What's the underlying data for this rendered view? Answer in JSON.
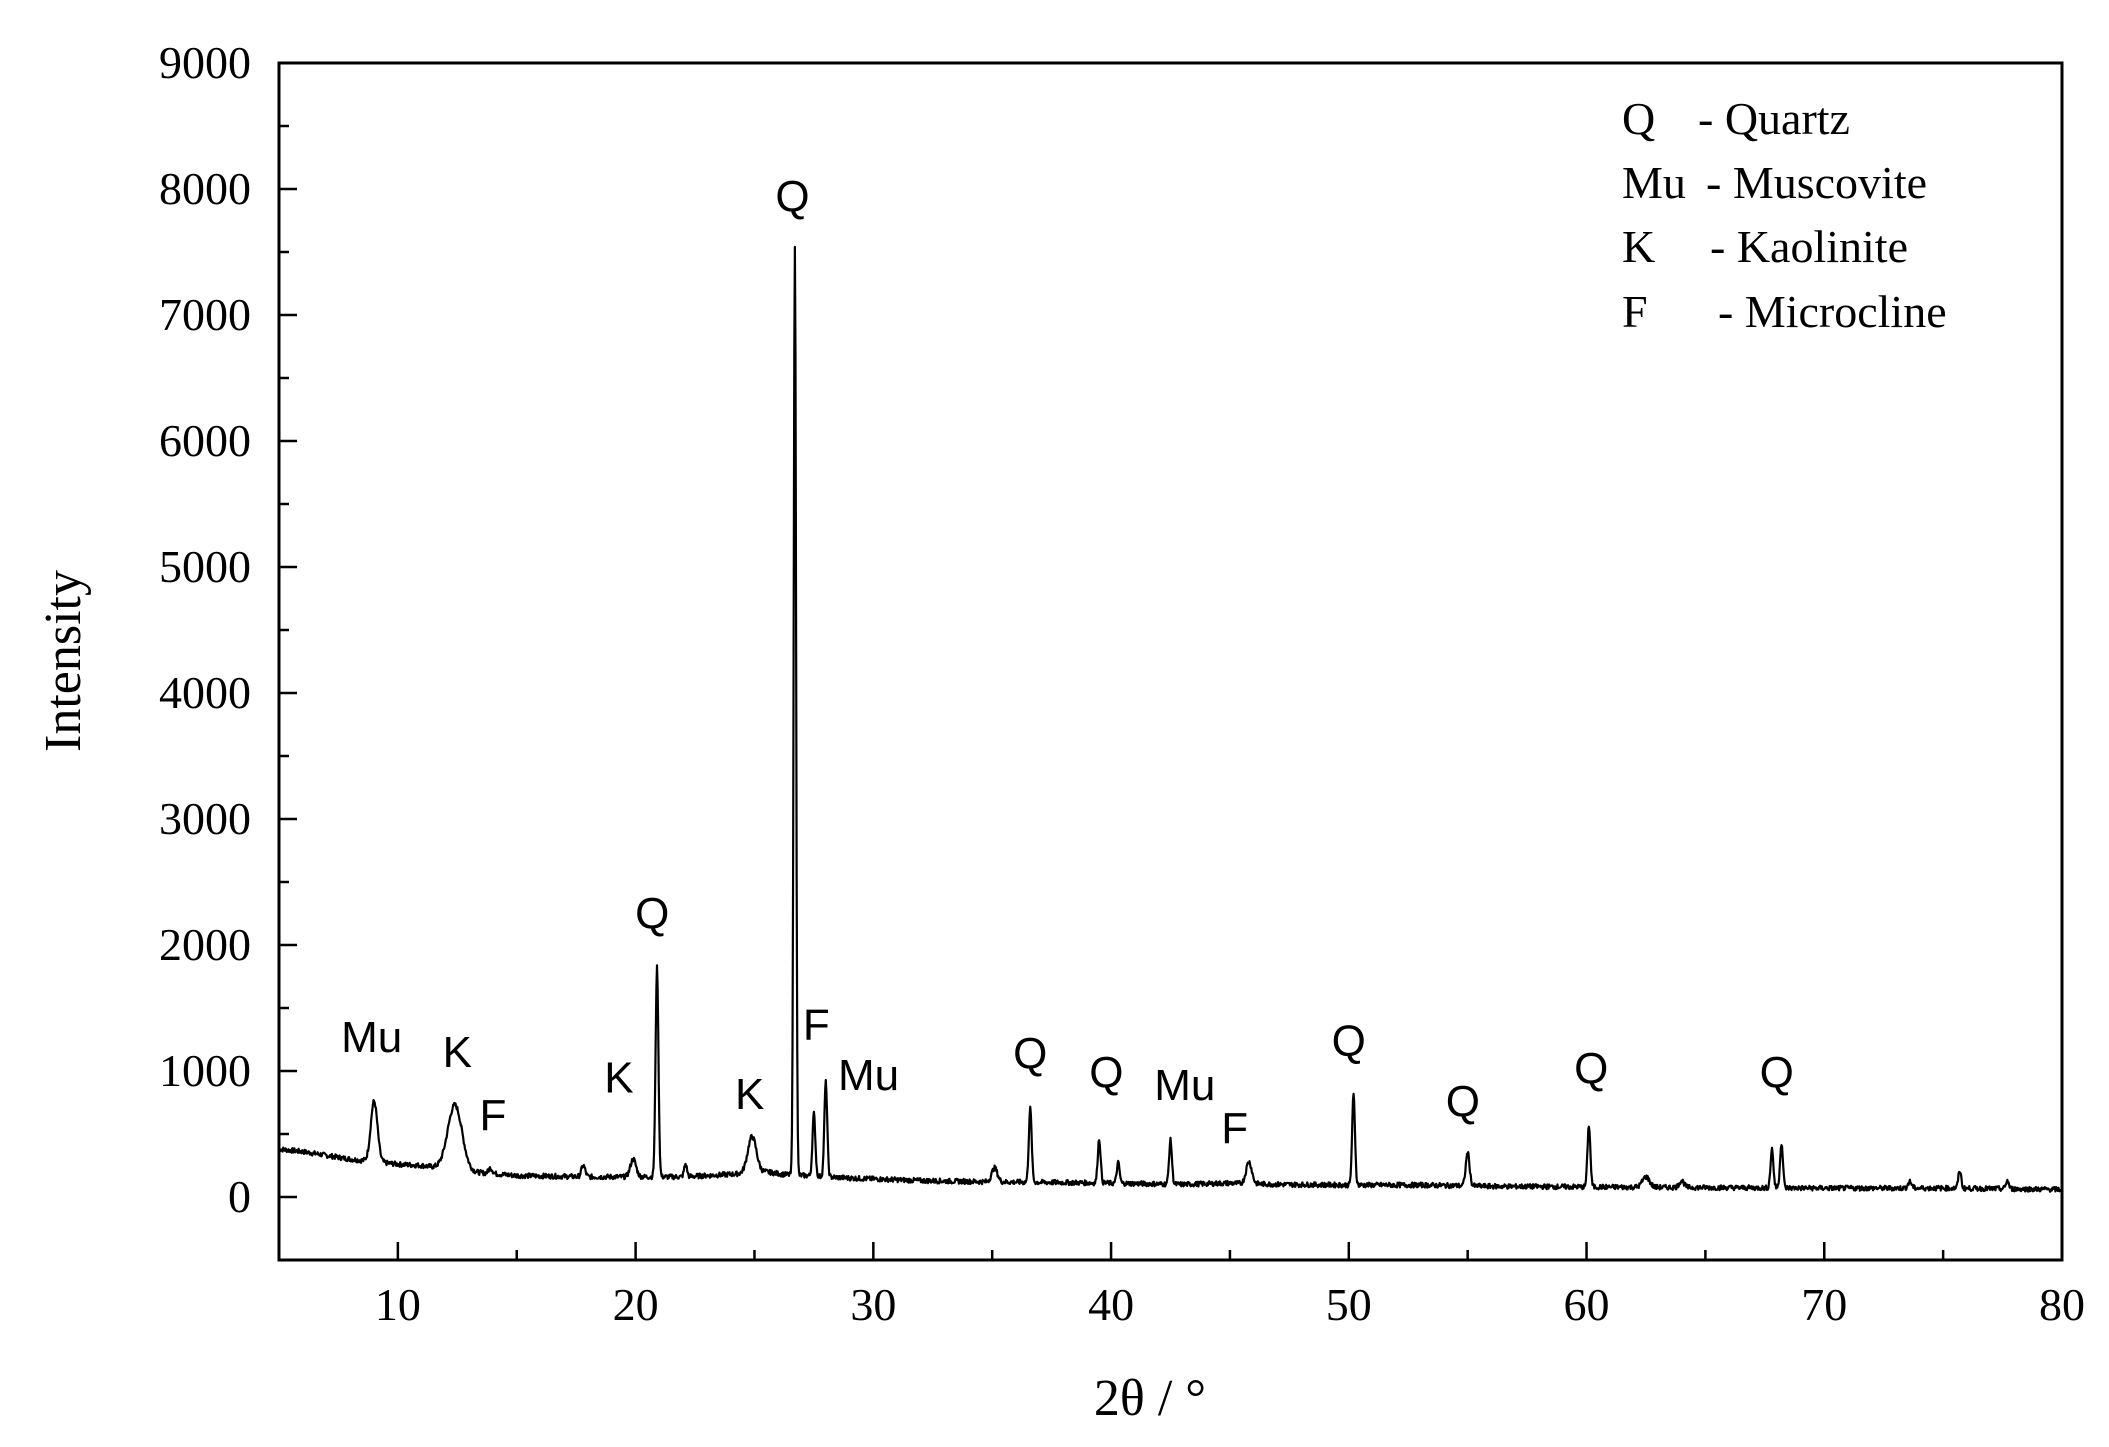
{
  "chart_data": {
    "type": "line",
    "title": "",
    "xlabel": "2θ / °",
    "ylabel": "Intensity",
    "xlim": [
      5,
      80
    ],
    "ylim": [
      -500,
      9000
    ],
    "xticks": [
      10,
      20,
      30,
      40,
      50,
      60,
      70,
      80
    ],
    "xtick_labels": [
      "10",
      "20",
      "30",
      "40",
      "50",
      "60",
      "70",
      "80"
    ],
    "yticks": [
      0,
      1000,
      2000,
      3000,
      4000,
      5000,
      6000,
      7000,
      8000,
      9000
    ],
    "ytick_labels": [
      "0",
      "1000",
      "2000",
      "3000",
      "4000",
      "5000",
      "6000",
      "7000",
      "8000",
      "9000"
    ],
    "grid": false,
    "legend_position": "top-right",
    "legend": [
      {
        "key": "Q",
        "sep": "- Quartz"
      },
      {
        "key": "Mu",
        "sep": "- Muscovite"
      },
      {
        "key": "K",
        "sep": "- Kaolinite"
      },
      {
        "key": "F",
        "sep": "- Microcline"
      }
    ],
    "baseline": [
      [
        5,
        380
      ],
      [
        6,
        360
      ],
      [
        7,
        330
      ],
      [
        8,
        300
      ],
      [
        10,
        260
      ],
      [
        11,
        250
      ],
      [
        13,
        200
      ],
      [
        15,
        170
      ],
      [
        18,
        160
      ],
      [
        20,
        160
      ],
      [
        22,
        160
      ],
      [
        24,
        180
      ],
      [
        25.5,
        200
      ],
      [
        26.2,
        180
      ],
      [
        29,
        150
      ],
      [
        32,
        130
      ],
      [
        35,
        120
      ],
      [
        38,
        115
      ],
      [
        40,
        110
      ],
      [
        43,
        100
      ],
      [
        45,
        110
      ],
      [
        47,
        100
      ],
      [
        50,
        95
      ],
      [
        53,
        95
      ],
      [
        56,
        85
      ],
      [
        60,
        80
      ],
      [
        65,
        75
      ],
      [
        70,
        70
      ],
      [
        75,
        70
      ],
      [
        80,
        60
      ]
    ],
    "peaks": [
      {
        "x": 9.0,
        "y": 760,
        "w": 0.14
      },
      {
        "x": 12.4,
        "y": 730,
        "w": 0.3
      },
      {
        "x": 13.9,
        "y": 230,
        "w": 0.08
      },
      {
        "x": 17.8,
        "y": 250,
        "w": 0.08
      },
      {
        "x": 19.9,
        "y": 300,
        "w": 0.12
      },
      {
        "x": 20.9,
        "y": 1820,
        "w": 0.06
      },
      {
        "x": 22.1,
        "y": 260,
        "w": 0.06
      },
      {
        "x": 24.9,
        "y": 480,
        "w": 0.18
      },
      {
        "x": 26.7,
        "y": 7550,
        "w": 0.05
      },
      {
        "x": 27.5,
        "y": 660,
        "w": 0.06
      },
      {
        "x": 28.0,
        "y": 910,
        "w": 0.06
      },
      {
        "x": 35.1,
        "y": 230,
        "w": 0.12
      },
      {
        "x": 36.6,
        "y": 700,
        "w": 0.06
      },
      {
        "x": 39.5,
        "y": 460,
        "w": 0.06
      },
      {
        "x": 40.3,
        "y": 270,
        "w": 0.06
      },
      {
        "x": 42.5,
        "y": 450,
        "w": 0.06
      },
      {
        "x": 45.8,
        "y": 280,
        "w": 0.12
      },
      {
        "x": 50.2,
        "y": 810,
        "w": 0.06
      },
      {
        "x": 55.0,
        "y": 350,
        "w": 0.08
      },
      {
        "x": 60.1,
        "y": 570,
        "w": 0.06
      },
      {
        "x": 62.5,
        "y": 160,
        "w": 0.15
      },
      {
        "x": 64.0,
        "y": 130,
        "w": 0.1
      },
      {
        "x": 67.8,
        "y": 380,
        "w": 0.06
      },
      {
        "x": 68.2,
        "y": 430,
        "w": 0.06
      },
      {
        "x": 73.6,
        "y": 120,
        "w": 0.08
      },
      {
        "x": 75.7,
        "y": 210,
        "w": 0.06
      },
      {
        "x": 77.7,
        "y": 130,
        "w": 0.06
      }
    ],
    "annotations": [
      {
        "text": "Mu",
        "x": 8.9,
        "y": 1150
      },
      {
        "text": "K",
        "x": 12.5,
        "y": 1030
      },
      {
        "text": "F",
        "x": 14.0,
        "y": 530
      },
      {
        "text": "K",
        "x": 19.3,
        "y": 830
      },
      {
        "text": "Q",
        "x": 20.7,
        "y": 2130
      },
      {
        "text": "K",
        "x": 24.8,
        "y": 700
      },
      {
        "text": "Q",
        "x": 26.6,
        "y": 7820
      },
      {
        "text": "F",
        "x": 27.6,
        "y": 1250
      },
      {
        "text": "Mu",
        "x": 29.8,
        "y": 850
      },
      {
        "text": "Q",
        "x": 36.6,
        "y": 1020
      },
      {
        "text": "Q",
        "x": 39.8,
        "y": 870
      },
      {
        "text": "Mu",
        "x": 43.1,
        "y": 770
      },
      {
        "text": "F",
        "x": 45.2,
        "y": 430
      },
      {
        "text": "Q",
        "x": 50.0,
        "y": 1120
      },
      {
        "text": "Q",
        "x": 54.8,
        "y": 640
      },
      {
        "text": "Q",
        "x": 60.2,
        "y": 900
      },
      {
        "text": "Q",
        "x": 68.0,
        "y": 870
      }
    ]
  }
}
